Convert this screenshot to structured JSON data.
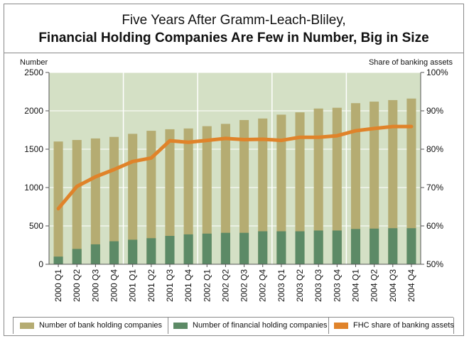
{
  "title": {
    "line1": "Five Years After Gramm-Leach-Bliley,",
    "line2": "Financial Holding Companies Are Few in Number, Big in Size"
  },
  "chart_data": {
    "type": "bar",
    "categories": [
      "2000 Q1",
      "2000 Q2",
      "2000 Q3",
      "2000 Q4",
      "2001 Q1",
      "2001 Q2",
      "2001 Q3",
      "2001 Q4",
      "2002 Q1",
      "2002 Q2",
      "2002 Q3",
      "2002 Q4",
      "2003 Q1",
      "2003 Q2",
      "2003 Q3",
      "2003 Q4",
      "2004 Q1",
      "2004 Q2",
      "2004 Q3",
      "2004 Q4"
    ],
    "left_axis": {
      "label": "Number",
      "ticks": [
        "0",
        "500",
        "1000",
        "1500",
        "2000",
        "2500"
      ],
      "ylim": [
        0,
        2500
      ]
    },
    "right_axis": {
      "label": "Share of banking assets",
      "ticks": [
        "50%",
        "60%",
        "70%",
        "80%",
        "90%",
        "100%"
      ],
      "ylim": [
        50,
        100
      ]
    },
    "series": [
      {
        "name": "Number of bank holding companies",
        "type": "bar",
        "axis": "left",
        "color": "#b5ac72",
        "values": [
          1600,
          1620,
          1640,
          1660,
          1700,
          1740,
          1760,
          1770,
          1800,
          1830,
          1880,
          1900,
          1950,
          1980,
          2030,
          2040,
          2100,
          2120,
          2140,
          2160
        ]
      },
      {
        "name": "Number of financial holding companies",
        "type": "bar",
        "axis": "left",
        "color": "#5c8a66",
        "values": [
          100,
          200,
          260,
          300,
          320,
          340,
          370,
          390,
          400,
          410,
          410,
          430,
          430,
          430,
          440,
          440,
          460,
          465,
          470,
          470
        ]
      },
      {
        "name": "FHC share of banking assets",
        "type": "line",
        "axis": "right",
        "color": "#e0832a",
        "values": [
          64.5,
          70.3,
          72.8,
          74.7,
          76.8,
          77.7,
          82.2,
          81.8,
          82.3,
          82.8,
          82.5,
          82.6,
          82.3,
          83.1,
          83.1,
          83.5,
          84.8,
          85.4,
          85.9,
          85.9
        ]
      }
    ],
    "year_dividers_after": [
      4,
      8,
      12,
      16
    ],
    "grid": true,
    "legend_position": "bottom",
    "plot_background": "#d4e0c5"
  }
}
